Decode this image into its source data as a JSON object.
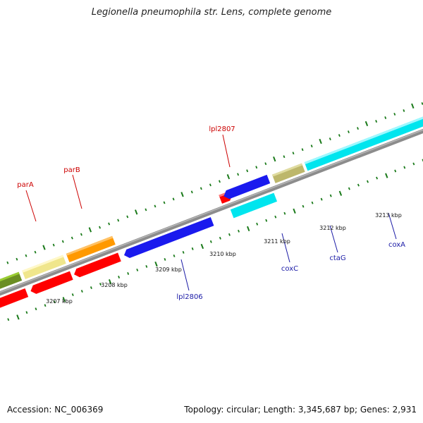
{
  "title": "Legionella pneumophila str. Lens, complete genome",
  "footer": {
    "accession_label": "Accession:",
    "accession": "NC_006369",
    "topology_label": "Topology:",
    "topology": "circular",
    "length_label": "Length:",
    "length": "3,345,687 bp",
    "genes_label": "Genes:",
    "genes": "2,931"
  },
  "scale_ticks": [
    "3207 kbp",
    "3208 kbp",
    "3209 kbp",
    "3210 kbp",
    "3211 kbp",
    "3212 kbp",
    "3213 kbp"
  ],
  "gene_labels": {
    "parA": "parA",
    "parB": "parB",
    "lpl2807": "lpl2807",
    "lpl2806": "lpl2806",
    "coxC": "coxC",
    "ctaG": "ctaG",
    "coxA": "coxA"
  },
  "colors": {
    "backbone": "#8c8c8c",
    "tick": "#1a7a1a",
    "forward_label": "#cc0000",
    "reverse_label": "#1a1aa6",
    "red": "#ff0000",
    "orange": "#ff9900",
    "pale_yellow": "#f0e68c",
    "olive": "#6b8e23",
    "blue": "#1a1aee",
    "cyan": "#00e5ee",
    "khaki": "#bdb76b"
  }
}
